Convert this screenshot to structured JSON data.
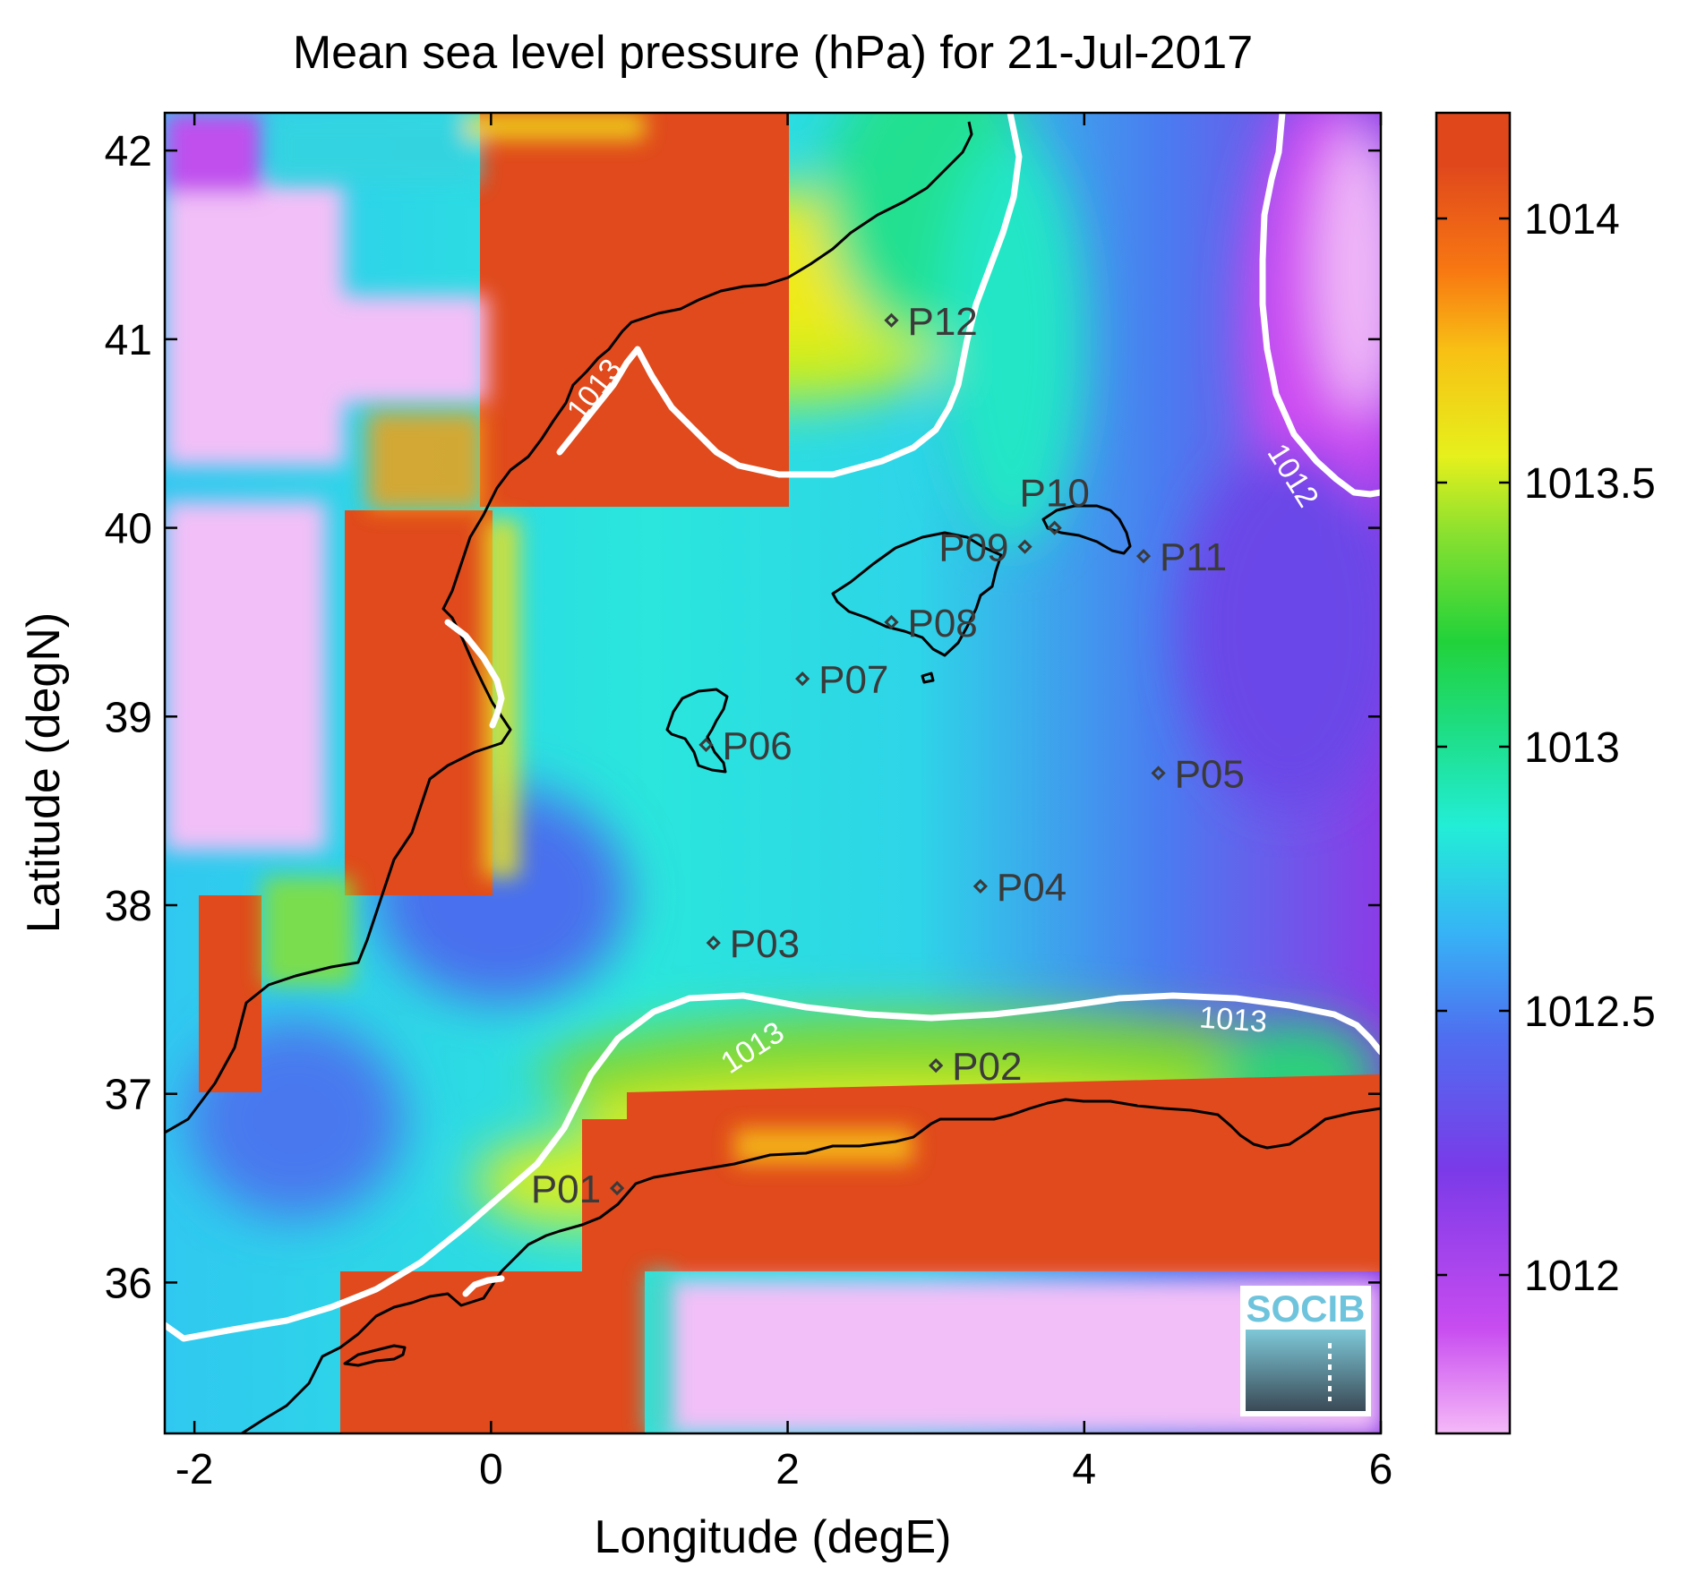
{
  "title": "Mean sea level pressure (hPa) for 21-Jul-2017",
  "x_axis": {
    "label": "Longitude (degE)",
    "range": [
      -2.2,
      6.0
    ],
    "ticks": [
      {
        "value": -2,
        "label": "-2"
      },
      {
        "value": 0,
        "label": "0"
      },
      {
        "value": 2,
        "label": "2"
      },
      {
        "value": 4,
        "label": "4"
      },
      {
        "value": 6,
        "label": "6"
      }
    ]
  },
  "y_axis": {
    "label": "Latitude (degN)",
    "range": [
      35.2,
      42.2
    ],
    "ticks": [
      {
        "value": 36,
        "label": "36"
      },
      {
        "value": 37,
        "label": "37"
      },
      {
        "value": 38,
        "label": "38"
      },
      {
        "value": 39,
        "label": "39"
      },
      {
        "value": 40,
        "label": "40"
      },
      {
        "value": 41,
        "label": "41"
      },
      {
        "value": 42,
        "label": "42"
      }
    ]
  },
  "colorbar": {
    "range": [
      1011.7,
      1014.2
    ],
    "ticks": [
      {
        "value": 1012,
        "label": "1012"
      },
      {
        "value": 1012.5,
        "label": "1012.5"
      },
      {
        "value": 1013,
        "label": "1013"
      },
      {
        "value": 1013.5,
        "label": "1013.5"
      },
      {
        "value": 1014,
        "label": "1014"
      }
    ],
    "colors": [
      "#f5b9f8",
      "#c84cf0",
      "#7a3ae8",
      "#4f6ef0",
      "#36b4f6",
      "#22eed6",
      "#1edc7c",
      "#22d23a",
      "#88e030",
      "#e6f01c",
      "#f8c014",
      "#f87812",
      "#e0481c"
    ]
  },
  "contour_labels": [
    {
      "text": "1013",
      "lon": 1.8,
      "lat": 37.2,
      "rotate": -33
    },
    {
      "text": "1013",
      "lon": 5.0,
      "lat": 37.34,
      "rotate": 4
    },
    {
      "text": "1012",
      "lon": 5.35,
      "lat": 40.25,
      "rotate": 58
    },
    {
      "text": "1013",
      "lon": 0.75,
      "lat": 40.7,
      "rotate": -52
    }
  ],
  "points": [
    {
      "id": "P01",
      "lon": 0.85,
      "lat": 36.5,
      "label_side": "left"
    },
    {
      "id": "P02",
      "lon": 3.0,
      "lat": 37.15,
      "label_side": "right"
    },
    {
      "id": "P03",
      "lon": 1.5,
      "lat": 37.8,
      "label_side": "right"
    },
    {
      "id": "P04",
      "lon": 3.3,
      "lat": 38.1,
      "label_side": "right"
    },
    {
      "id": "P05",
      "lon": 4.5,
      "lat": 38.7,
      "label_side": "right"
    },
    {
      "id": "P06",
      "lon": 1.45,
      "lat": 38.85,
      "label_side": "right"
    },
    {
      "id": "P07",
      "lon": 2.1,
      "lat": 39.2,
      "label_side": "right"
    },
    {
      "id": "P08",
      "lon": 2.7,
      "lat": 39.5,
      "label_side": "right"
    },
    {
      "id": "P09",
      "lon": 3.6,
      "lat": 39.9,
      "label_side": "left"
    },
    {
      "id": "P10",
      "lon": 3.8,
      "lat": 40.0,
      "label_side": "top"
    },
    {
      "id": "P11",
      "lon": 4.4,
      "lat": 39.85,
      "label_side": "right"
    },
    {
      "id": "P12",
      "lon": 2.7,
      "lat": 41.1,
      "label_side": "right"
    }
  ],
  "logo": {
    "text": "SOCIB"
  },
  "colors": {
    "high": "#e04a1c",
    "low": "#f2bff8",
    "coast": "#000000",
    "contour": "#ffffff",
    "logo_text": "#6ec4dc"
  }
}
